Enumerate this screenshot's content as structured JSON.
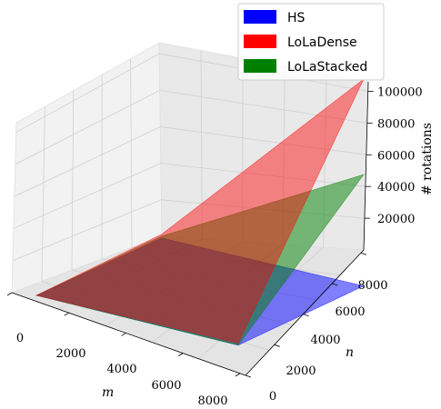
{
  "chart_data": {
    "type": "surface3d",
    "title": "",
    "xlabel": "m",
    "ylabel": "n",
    "zlabel": "# rotations",
    "x_ticks": [
      "0",
      "2000",
      "4000",
      "6000",
      "8000"
    ],
    "y_ticks": [
      "0",
      "2000",
      "4000",
      "6000",
      "8000"
    ],
    "z_ticks": [
      "20000",
      "40000",
      "60000",
      "80000",
      "100000"
    ],
    "xlim": [
      0,
      8192
    ],
    "ylim": [
      0,
      8192
    ],
    "zlim": [
      0,
      106000
    ],
    "legend_position": "top-right",
    "series": [
      {
        "name": "HS",
        "color": "#0000ff",
        "corners": {
          "m0_n0": 0,
          "m8192_n0": 1000,
          "m0_n8192": 0,
          "m8192_n8192": 2000
        }
      },
      {
        "name": "LoLaDense",
        "color": "#ff0000",
        "corners": {
          "m0_n0": 0,
          "m8192_n0": 2000,
          "m0_n8192": 2000,
          "m8192_n8192": 106000
        }
      },
      {
        "name": "LoLaStacked",
        "color": "#008000",
        "corners": {
          "m0_n0": 0,
          "m8192_n0": 1000,
          "m0_n8192": 1000,
          "m8192_n8192": 58000
        }
      }
    ]
  }
}
